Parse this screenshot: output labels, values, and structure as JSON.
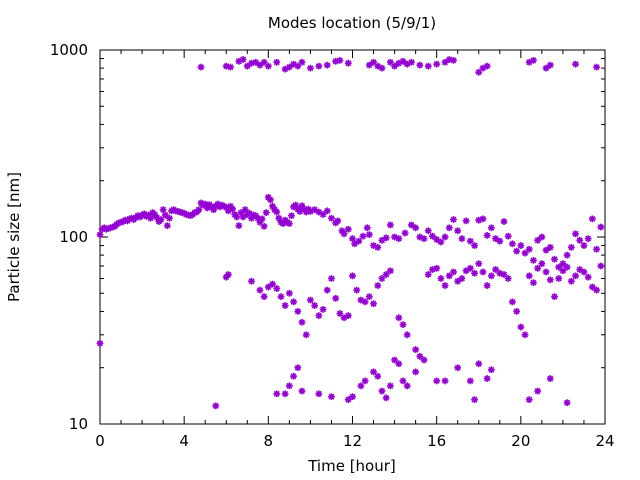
{
  "chart_data": {
    "type": "scatter",
    "title": "Modes location (5/9/1)",
    "xlabel": "Time [hour]",
    "ylabel": "Particle size [nm]",
    "xlim": [
      0,
      24
    ],
    "ylim": [
      10,
      1000
    ],
    "yscale": "log",
    "xticks": [
      "0",
      "4",
      "8",
      "12",
      "16",
      "20",
      "24"
    ],
    "yticks": [
      "10",
      "100",
      "1000"
    ],
    "marker": "star",
    "color": "#9400d3",
    "grid": false,
    "legend": "none",
    "points": [
      [
        0.0,
        103
      ],
      [
        0.0,
        27
      ],
      [
        0.1,
        110
      ],
      [
        0.2,
        112
      ],
      [
        0.3,
        110
      ],
      [
        0.4,
        111
      ],
      [
        0.5,
        112
      ],
      [
        0.6,
        113
      ],
      [
        0.7,
        114
      ],
      [
        0.8,
        117
      ],
      [
        0.9,
        119
      ],
      [
        1.0,
        120
      ],
      [
        1.1,
        121
      ],
      [
        1.2,
        123
      ],
      [
        1.3,
        122
      ],
      [
        1.4,
        125
      ],
      [
        1.5,
        126
      ],
      [
        1.6,
        124
      ],
      [
        1.7,
        127
      ],
      [
        1.8,
        130
      ],
      [
        1.9,
        128
      ],
      [
        2.0,
        131
      ],
      [
        2.1,
        133
      ],
      [
        2.2,
        129
      ],
      [
        2.3,
        131
      ],
      [
        2.4,
        126
      ],
      [
        2.5,
        135
      ],
      [
        2.6,
        132
      ],
      [
        2.7,
        127
      ],
      [
        2.8,
        121
      ],
      [
        2.9,
        124
      ],
      [
        3.0,
        140
      ],
      [
        3.1,
        131
      ],
      [
        3.2,
        115
      ],
      [
        3.3,
        126
      ],
      [
        3.4,
        138
      ],
      [
        3.5,
        140
      ],
      [
        3.6,
        138
      ],
      [
        3.7,
        137
      ],
      [
        3.8,
        136
      ],
      [
        3.9,
        135
      ],
      [
        4.0,
        134
      ],
      [
        4.1,
        132
      ],
      [
        4.2,
        131
      ],
      [
        4.3,
        130
      ],
      [
        4.4,
        132
      ],
      [
        4.5,
        135
      ],
      [
        4.6,
        136
      ],
      [
        4.7,
        140
      ],
      [
        4.8,
        152
      ],
      [
        4.9,
        148
      ],
      [
        5.0,
        150
      ],
      [
        5.1,
        143
      ],
      [
        5.2,
        149
      ],
      [
        5.3,
        145
      ],
      [
        5.4,
        140
      ],
      [
        5.5,
        146
      ],
      [
        5.6,
        150
      ],
      [
        5.7,
        145
      ],
      [
        5.8,
        148
      ],
      [
        5.9,
        146
      ],
      [
        6.0,
        144
      ],
      [
        6.1,
        138
      ],
      [
        6.2,
        146
      ],
      [
        6.3,
        141
      ],
      [
        6.4,
        132
      ],
      [
        6.5,
        128
      ],
      [
        6.6,
        115
      ],
      [
        6.7,
        135
      ],
      [
        6.8,
        128
      ],
      [
        6.9,
        140
      ],
      [
        7.0,
        132
      ],
      [
        7.1,
        134
      ],
      [
        7.2,
        126
      ],
      [
        7.3,
        131
      ],
      [
        7.4,
        130
      ],
      [
        7.5,
        126
      ],
      [
        7.6,
        120
      ],
      [
        7.7,
        125
      ],
      [
        7.8,
        114
      ],
      [
        7.9,
        135
      ],
      [
        8.0,
        163
      ],
      [
        8.1,
        158
      ],
      [
        8.2,
        146
      ],
      [
        8.3,
        140
      ],
      [
        8.4,
        136
      ],
      [
        8.5,
        126
      ],
      [
        8.6,
        120
      ],
      [
        8.7,
        118
      ],
      [
        8.8,
        123
      ],
      [
        8.9,
        120
      ],
      [
        9.0,
        118
      ],
      [
        9.1,
        130
      ],
      [
        9.2,
        145
      ],
      [
        9.3,
        148
      ],
      [
        9.4,
        141
      ],
      [
        9.5,
        137
      ],
      [
        9.6,
        147
      ],
      [
        9.7,
        141
      ],
      [
        9.8,
        136
      ],
      [
        9.9,
        141
      ],
      [
        10.0,
        137
      ],
      [
        10.2,
        140
      ],
      [
        10.4,
        136
      ],
      [
        10.6,
        132
      ],
      [
        10.8,
        138
      ],
      [
        11.0,
        126
      ],
      [
        11.2,
        119
      ],
      [
        11.3,
        122
      ],
      [
        11.5,
        108
      ],
      [
        11.6,
        104
      ],
      [
        11.8,
        110
      ],
      [
        12.0,
        98
      ],
      [
        12.1,
        92
      ],
      [
        12.3,
        95
      ],
      [
        12.5,
        101
      ],
      [
        12.7,
        112
      ],
      [
        12.8,
        103
      ],
      [
        13.0,
        90
      ],
      [
        13.2,
        88
      ],
      [
        13.4,
        96
      ],
      [
        13.6,
        99
      ],
      [
        13.8,
        116
      ],
      [
        14.0,
        100
      ],
      [
        14.2,
        98
      ],
      [
        14.5,
        105
      ],
      [
        14.8,
        116
      ],
      [
        15.0,
        112
      ],
      [
        15.2,
        100
      ],
      [
        15.4,
        98
      ],
      [
        15.6,
        108
      ],
      [
        15.8,
        101
      ],
      [
        16.0,
        97
      ],
      [
        16.2,
        94
      ],
      [
        16.4,
        100
      ],
      [
        16.6,
        112
      ],
      [
        16.8,
        124
      ],
      [
        17.0,
        108
      ],
      [
        17.2,
        98
      ],
      [
        17.4,
        122
      ],
      [
        17.6,
        95
      ],
      [
        17.8,
        90
      ],
      [
        18.0,
        123
      ],
      [
        18.2,
        125
      ],
      [
        18.4,
        102
      ],
      [
        18.6,
        112
      ],
      [
        18.8,
        98
      ],
      [
        19.0,
        95
      ],
      [
        19.2,
        121
      ],
      [
        19.4,
        101
      ],
      [
        19.6,
        92
      ],
      [
        19.8,
        84
      ],
      [
        20.0,
        90
      ],
      [
        20.2,
        82
      ],
      [
        20.4,
        86
      ],
      [
        20.6,
        75
      ],
      [
        20.8,
        96
      ],
      [
        21.0,
        100
      ],
      [
        21.2,
        85
      ],
      [
        21.4,
        88
      ],
      [
        21.6,
        76
      ],
      [
        21.8,
        69
      ],
      [
        22.0,
        72
      ],
      [
        22.2,
        80
      ],
      [
        22.4,
        88
      ],
      [
        22.6,
        104
      ],
      [
        22.8,
        96
      ],
      [
        23.0,
        90
      ],
      [
        23.2,
        98
      ],
      [
        23.4,
        125
      ],
      [
        23.6,
        86
      ],
      [
        23.8,
        113
      ],
      [
        6.0,
        61
      ],
      [
        6.1,
        63
      ],
      [
        7.2,
        58
      ],
      [
        7.6,
        52
      ],
      [
        7.8,
        48
      ],
      [
        8.0,
        54
      ],
      [
        8.2,
        56
      ],
      [
        8.4,
        53
      ],
      [
        8.6,
        48
      ],
      [
        8.8,
        43
      ],
      [
        9.0,
        50
      ],
      [
        9.2,
        45
      ],
      [
        9.4,
        40
      ],
      [
        9.6,
        35
      ],
      [
        9.8,
        30
      ],
      [
        10.0,
        46
      ],
      [
        10.2,
        43
      ],
      [
        10.4,
        38
      ],
      [
        10.6,
        41
      ],
      [
        10.8,
        52
      ],
      [
        11.0,
        60
      ],
      [
        11.2,
        47
      ],
      [
        11.4,
        39
      ],
      [
        11.6,
        37
      ],
      [
        11.8,
        38
      ],
      [
        12.0,
        62
      ],
      [
        12.2,
        52
      ],
      [
        12.4,
        46
      ],
      [
        12.6,
        45
      ],
      [
        12.8,
        48
      ],
      [
        13.0,
        44
      ],
      [
        13.2,
        55
      ],
      [
        13.4,
        60
      ],
      [
        13.6,
        63
      ],
      [
        13.8,
        66
      ],
      [
        14.2,
        37
      ],
      [
        14.4,
        34
      ],
      [
        14.6,
        30
      ],
      [
        15.0,
        25
      ],
      [
        15.2,
        23
      ],
      [
        15.6,
        63
      ],
      [
        15.8,
        67
      ],
      [
        16.0,
        68
      ],
      [
        16.2,
        60
      ],
      [
        16.4,
        55
      ],
      [
        16.6,
        62
      ],
      [
        16.8,
        65
      ],
      [
        17.0,
        58
      ],
      [
        17.2,
        60
      ],
      [
        17.4,
        66
      ],
      [
        17.6,
        68
      ],
      [
        17.8,
        64
      ],
      [
        18.0,
        72
      ],
      [
        18.2,
        65
      ],
      [
        18.4,
        55
      ],
      [
        18.6,
        62
      ],
      [
        18.8,
        67
      ],
      [
        19.0,
        64
      ],
      [
        19.2,
        63
      ],
      [
        19.4,
        60
      ],
      [
        19.6,
        45
      ],
      [
        19.8,
        40
      ],
      [
        20.0,
        33
      ],
      [
        20.2,
        30
      ],
      [
        20.4,
        62
      ],
      [
        20.6,
        57
      ],
      [
        20.8,
        68
      ],
      [
        21.0,
        72
      ],
      [
        21.2,
        65
      ],
      [
        21.4,
        59
      ],
      [
        21.6,
        48
      ],
      [
        21.8,
        60
      ],
      [
        22.0,
        66
      ],
      [
        22.2,
        69
      ],
      [
        22.4,
        58
      ],
      [
        22.6,
        62
      ],
      [
        22.8,
        67
      ],
      [
        23.0,
        65
      ],
      [
        23.2,
        61
      ],
      [
        23.4,
        54
      ],
      [
        23.6,
        52
      ],
      [
        23.8,
        70
      ],
      [
        5.5,
        12.5
      ],
      [
        9.2,
        18
      ],
      [
        9.4,
        20
      ],
      [
        9.6,
        15
      ],
      [
        8.8,
        14.5
      ],
      [
        9.0,
        16
      ],
      [
        8.4,
        14.5
      ],
      [
        10.4,
        14.5
      ],
      [
        11.0,
        14
      ],
      [
        11.8,
        13.5
      ],
      [
        12.0,
        14
      ],
      [
        12.4,
        16
      ],
      [
        12.6,
        17
      ],
      [
        13.0,
        19
      ],
      [
        13.2,
        18
      ],
      [
        13.4,
        15
      ],
      [
        13.6,
        13.8
      ],
      [
        13.8,
        16
      ],
      [
        14.0,
        22
      ],
      [
        14.2,
        21
      ],
      [
        14.4,
        17
      ],
      [
        14.6,
        16
      ],
      [
        15.0,
        19
      ],
      [
        15.4,
        22
      ],
      [
        16.0,
        17
      ],
      [
        16.4,
        17
      ],
      [
        17.0,
        20
      ],
      [
        17.6,
        17
      ],
      [
        17.8,
        13.5
      ],
      [
        18.0,
        21
      ],
      [
        18.4,
        17.5
      ],
      [
        18.6,
        19.5
      ],
      [
        20.4,
        13.5
      ],
      [
        20.8,
        15
      ],
      [
        21.4,
        17.5
      ],
      [
        22.2,
        13
      ],
      [
        4.8,
        810
      ],
      [
        6.0,
        820
      ],
      [
        6.2,
        810
      ],
      [
        6.6,
        870
      ],
      [
        6.8,
        890
      ],
      [
        7.0,
        820
      ],
      [
        7.2,
        850
      ],
      [
        7.4,
        860
      ],
      [
        7.6,
        830
      ],
      [
        7.8,
        860
      ],
      [
        8.0,
        820
      ],
      [
        8.4,
        860
      ],
      [
        8.8,
        790
      ],
      [
        9.0,
        810
      ],
      [
        9.2,
        840
      ],
      [
        9.4,
        820
      ],
      [
        9.6,
        860
      ],
      [
        10.0,
        800
      ],
      [
        10.4,
        820
      ],
      [
        10.8,
        830
      ],
      [
        11.2,
        870
      ],
      [
        11.4,
        880
      ],
      [
        11.8,
        850
      ],
      [
        12.8,
        830
      ],
      [
        13.0,
        860
      ],
      [
        13.2,
        820
      ],
      [
        13.4,
        800
      ],
      [
        13.8,
        860
      ],
      [
        14.0,
        820
      ],
      [
        14.2,
        850
      ],
      [
        14.4,
        870
      ],
      [
        14.6,
        840
      ],
      [
        14.8,
        860
      ],
      [
        15.2,
        830
      ],
      [
        15.6,
        820
      ],
      [
        16.0,
        840
      ],
      [
        16.4,
        860
      ],
      [
        16.6,
        890
      ],
      [
        16.8,
        880
      ],
      [
        18.0,
        760
      ],
      [
        18.2,
        800
      ],
      [
        18.4,
        820
      ],
      [
        20.4,
        860
      ],
      [
        20.6,
        880
      ],
      [
        21.2,
        800
      ],
      [
        21.4,
        830
      ],
      [
        22.6,
        840
      ],
      [
        23.6,
        810
      ]
    ]
  }
}
